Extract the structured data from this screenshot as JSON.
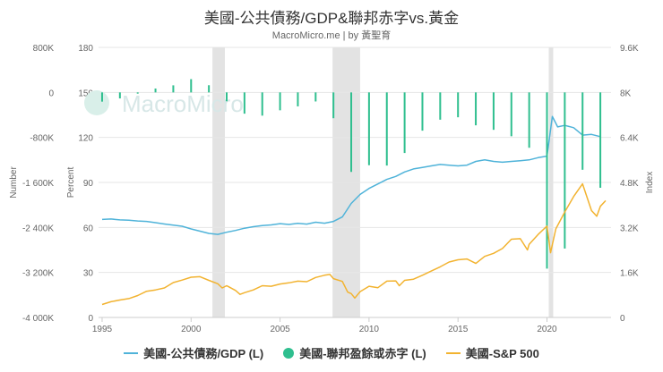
{
  "title": "美國-公共債務/GDP&聯邦赤字vs.黃金",
  "subtitle": "MacroMicro.me | by 黃聖育",
  "watermark": "MacroMicro",
  "colors": {
    "debt": "#4fb3d9",
    "deficit": "#2fbf8f",
    "sp500": "#f2b330",
    "grid": "#e6e6e6",
    "recession": "#e3e3e3",
    "axis_text": "#666666"
  },
  "chart_data": {
    "type": "line+bar",
    "x_range": [
      1994.8,
      2023.6
    ],
    "x_ticks": [
      "1995",
      "2000",
      "2005",
      "2010",
      "2015",
      "2020"
    ],
    "axes": {
      "left_number": {
        "label": "Number",
        "ticks": [
          "800K",
          "0",
          "-800K",
          "-1 600K",
          "-2 400K",
          "-3 200K",
          "-4 000K"
        ],
        "range": [
          -4000,
          800
        ]
      },
      "left_percent": {
        "label": "Percent",
        "ticks": [
          "180",
          "150",
          "120",
          "90",
          "60",
          "30",
          "0"
        ],
        "range": [
          0,
          180
        ]
      },
      "right_index": {
        "label": "Index",
        "ticks": [
          "9.6K",
          "8K",
          "6.4K",
          "4.8K",
          "3.2K",
          "1.6K",
          "0"
        ],
        "range": [
          0,
          9600
        ]
      }
    },
    "recessions": [
      [
        2001.2,
        2001.9
      ],
      [
        2007.95,
        2009.5
      ],
      [
        2020.1,
        2020.35
      ]
    ],
    "series": [
      {
        "name": "美國-公共債務/GDP (L)",
        "axis": "left_percent",
        "style": "line",
        "points": [
          [
            1995.0,
            65.3
          ],
          [
            1995.5,
            65.6
          ],
          [
            1996.0,
            65.0
          ],
          [
            1996.5,
            64.8
          ],
          [
            1997.0,
            64.3
          ],
          [
            1997.5,
            64.0
          ],
          [
            1998.0,
            63.2
          ],
          [
            1998.5,
            62.3
          ],
          [
            1999.0,
            61.5
          ],
          [
            1999.5,
            60.8
          ],
          [
            2000.0,
            59.0
          ],
          [
            2000.5,
            57.5
          ],
          [
            2001.0,
            56.0
          ],
          [
            2001.5,
            55.4
          ],
          [
            2002.0,
            56.8
          ],
          [
            2002.5,
            58.0
          ],
          [
            2003.0,
            59.5
          ],
          [
            2003.5,
            60.5
          ],
          [
            2004.0,
            61.3
          ],
          [
            2004.5,
            61.7
          ],
          [
            2005.0,
            62.5
          ],
          [
            2005.5,
            62.0
          ],
          [
            2006.0,
            62.7
          ],
          [
            2006.5,
            62.2
          ],
          [
            2007.0,
            63.5
          ],
          [
            2007.5,
            62.8
          ],
          [
            2008.0,
            64.0
          ],
          [
            2008.5,
            67.0
          ],
          [
            2009.0,
            76.0
          ],
          [
            2009.5,
            82.0
          ],
          [
            2010.0,
            86.0
          ],
          [
            2010.5,
            89.0
          ],
          [
            2011.0,
            92.0
          ],
          [
            2011.5,
            94.0
          ],
          [
            2012.0,
            97.0
          ],
          [
            2012.5,
            99.0
          ],
          [
            2013.0,
            100.0
          ],
          [
            2013.5,
            101.0
          ],
          [
            2014.0,
            102.0
          ],
          [
            2014.5,
            101.5
          ],
          [
            2015.0,
            101.0
          ],
          [
            2015.5,
            101.5
          ],
          [
            2016.0,
            104.0
          ],
          [
            2016.5,
            105.0
          ],
          [
            2017.0,
            104.0
          ],
          [
            2017.5,
            103.5
          ],
          [
            2018.0,
            104.0
          ],
          [
            2018.5,
            104.5
          ],
          [
            2019.0,
            105.0
          ],
          [
            2019.5,
            106.5
          ],
          [
            2020.0,
            107.5
          ],
          [
            2020.3,
            134.0
          ],
          [
            2020.6,
            127.0
          ],
          [
            2021.0,
            128.0
          ],
          [
            2021.5,
            126.5
          ],
          [
            2022.0,
            121.5
          ],
          [
            2022.5,
            122.0
          ],
          [
            2023.0,
            120.5
          ]
        ]
      },
      {
        "name": "美國-聯邦盈餘或赤字 (L)",
        "axis": "left_number",
        "style": "bar",
        "points": [
          [
            1995.0,
            -164
          ],
          [
            1996.0,
            -107
          ],
          [
            1997.0,
            -22
          ],
          [
            1998.0,
            69
          ],
          [
            1999.0,
            126
          ],
          [
            2000.0,
            236
          ],
          [
            2001.0,
            128
          ],
          [
            2002.0,
            -158
          ],
          [
            2003.0,
            -378
          ],
          [
            2004.0,
            -413
          ],
          [
            2005.0,
            -318
          ],
          [
            2006.0,
            -248
          ],
          [
            2007.0,
            -161
          ],
          [
            2008.0,
            -459
          ],
          [
            2009.0,
            -1413
          ],
          [
            2010.0,
            -1294
          ],
          [
            2011.0,
            -1300
          ],
          [
            2012.0,
            -1077
          ],
          [
            2013.0,
            -680
          ],
          [
            2014.0,
            -485
          ],
          [
            2015.0,
            -442
          ],
          [
            2016.0,
            -585
          ],
          [
            2017.0,
            -665
          ],
          [
            2018.0,
            -779
          ],
          [
            2019.0,
            -984
          ],
          [
            2020.0,
            -3132
          ],
          [
            2021.0,
            -2775
          ],
          [
            2022.0,
            -1375
          ],
          [
            2023.0,
            -1695
          ]
        ]
      },
      {
        "name": "美國-S&P 500",
        "axis": "right_index",
        "style": "line",
        "points": [
          [
            1995.0,
            460
          ],
          [
            1995.5,
            560
          ],
          [
            1996.0,
            620
          ],
          [
            1996.5,
            670
          ],
          [
            1997.0,
            780
          ],
          [
            1997.5,
            930
          ],
          [
            1998.0,
            980
          ],
          [
            1998.5,
            1050
          ],
          [
            1999.0,
            1240
          ],
          [
            1999.5,
            1330
          ],
          [
            2000.0,
            1430
          ],
          [
            2000.5,
            1450
          ],
          [
            2001.0,
            1320
          ],
          [
            2001.5,
            1200
          ],
          [
            2001.75,
            1050
          ],
          [
            2002.0,
            1130
          ],
          [
            2002.5,
            960
          ],
          [
            2002.75,
            820
          ],
          [
            2003.0,
            880
          ],
          [
            2003.5,
            980
          ],
          [
            2004.0,
            1130
          ],
          [
            2004.5,
            1110
          ],
          [
            2005.0,
            1190
          ],
          [
            2005.5,
            1230
          ],
          [
            2006.0,
            1290
          ],
          [
            2006.5,
            1270
          ],
          [
            2007.0,
            1420
          ],
          [
            2007.5,
            1500
          ],
          [
            2007.8,
            1530
          ],
          [
            2008.0,
            1380
          ],
          [
            2008.5,
            1280
          ],
          [
            2008.8,
            900
          ],
          [
            2009.0,
            850
          ],
          [
            2009.2,
            690
          ],
          [
            2009.5,
            920
          ],
          [
            2010.0,
            1110
          ],
          [
            2010.5,
            1060
          ],
          [
            2011.0,
            1290
          ],
          [
            2011.5,
            1300
          ],
          [
            2011.7,
            1130
          ],
          [
            2012.0,
            1320
          ],
          [
            2012.5,
            1360
          ],
          [
            2013.0,
            1500
          ],
          [
            2013.5,
            1650
          ],
          [
            2014.0,
            1800
          ],
          [
            2014.5,
            1970
          ],
          [
            2015.0,
            2050
          ],
          [
            2015.5,
            2080
          ],
          [
            2016.0,
            1920
          ],
          [
            2016.5,
            2170
          ],
          [
            2017.0,
            2280
          ],
          [
            2017.5,
            2450
          ],
          [
            2018.0,
            2780
          ],
          [
            2018.5,
            2800
          ],
          [
            2018.9,
            2400
          ],
          [
            2019.0,
            2600
          ],
          [
            2019.5,
            2950
          ],
          [
            2020.0,
            3250
          ],
          [
            2020.2,
            2300
          ],
          [
            2020.5,
            3150
          ],
          [
            2021.0,
            3750
          ],
          [
            2021.5,
            4300
          ],
          [
            2022.0,
            4750
          ],
          [
            2022.5,
            3800
          ],
          [
            2022.8,
            3600
          ],
          [
            2023.0,
            3950
          ],
          [
            2023.3,
            4150
          ]
        ]
      }
    ]
  },
  "legend": [
    {
      "label": "美國-公共債務/GDP (L)",
      "type": "line",
      "color": "#4fb3d9"
    },
    {
      "label": "美國-聯邦盈餘或赤字 (L)",
      "type": "dot",
      "color": "#2fbf8f"
    },
    {
      "label": "美國-S&P 500",
      "type": "line",
      "color": "#f2b330"
    }
  ]
}
